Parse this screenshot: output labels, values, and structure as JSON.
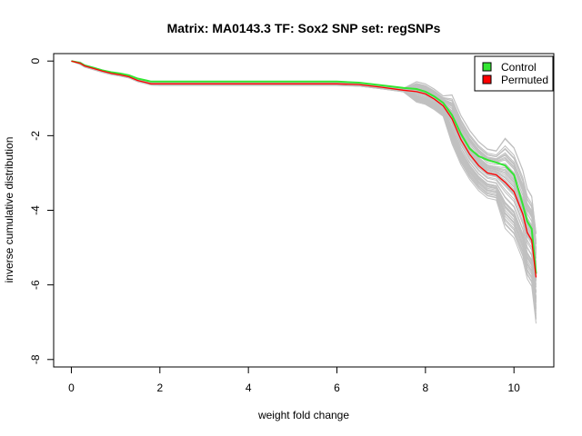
{
  "chart_data": {
    "type": "line",
    "title": "Matrix: MA0143.3 TF: Sox2 SNP set: regSNPs",
    "xlabel": "weight fold change",
    "ylabel": "inverse cumulative distribution",
    "xlim": [
      -0.4,
      10.9
    ],
    "ylim": [
      -8.2,
      0.2
    ],
    "x_ticks": [
      0,
      2,
      4,
      6,
      8,
      10
    ],
    "y_ticks": [
      0,
      -2,
      -4,
      -6,
      -8
    ],
    "grid": false,
    "legend_position": "top-right",
    "colors": {
      "control": "#33e633",
      "permuted": "#ff0000",
      "permutation_runs": "#c0c0c0"
    },
    "series": [
      {
        "name": "Control",
        "color": "#33e633",
        "x": [
          0,
          0.2,
          0.3,
          0.5,
          0.7,
          0.9,
          1.1,
          1.3,
          1.5,
          1.7,
          1.8,
          2.0,
          3.0,
          4.0,
          5.0,
          6.0,
          6.5,
          7.0,
          7.5,
          7.8,
          8.0,
          8.2,
          8.4,
          8.6,
          8.8,
          9.0,
          9.2,
          9.4,
          9.6,
          9.8,
          10.0,
          10.2,
          10.3,
          10.4,
          10.5
        ],
        "y": [
          0,
          -0.05,
          -0.12,
          -0.18,
          -0.25,
          -0.3,
          -0.33,
          -0.38,
          -0.47,
          -0.52,
          -0.55,
          -0.55,
          -0.55,
          -0.55,
          -0.55,
          -0.55,
          -0.58,
          -0.65,
          -0.72,
          -0.75,
          -0.82,
          -0.95,
          -1.12,
          -1.45,
          -1.95,
          -2.35,
          -2.55,
          -2.65,
          -2.72,
          -2.8,
          -3.05,
          -3.85,
          -4.3,
          -4.5,
          -5.7
        ]
      },
      {
        "name": "Permuted",
        "color": "#ff0000",
        "x": [
          0,
          0.2,
          0.3,
          0.5,
          0.7,
          0.9,
          1.1,
          1.3,
          1.5,
          1.7,
          1.8,
          2.0,
          3.0,
          4.0,
          5.0,
          6.0,
          6.5,
          7.0,
          7.5,
          7.8,
          8.0,
          8.2,
          8.4,
          8.6,
          8.8,
          9.0,
          9.2,
          9.4,
          9.6,
          9.8,
          10.0,
          10.2,
          10.3,
          10.4,
          10.5
        ],
        "y": [
          0,
          -0.06,
          -0.13,
          -0.2,
          -0.27,
          -0.33,
          -0.37,
          -0.42,
          -0.52,
          -0.58,
          -0.61,
          -0.61,
          -0.61,
          -0.61,
          -0.61,
          -0.61,
          -0.63,
          -0.7,
          -0.78,
          -0.82,
          -0.88,
          -1.02,
          -1.2,
          -1.55,
          -2.1,
          -2.5,
          -2.8,
          -3.0,
          -3.05,
          -3.25,
          -3.5,
          -4.1,
          -4.6,
          -4.8,
          -5.8
        ]
      }
    ],
    "legend": [
      {
        "label": "Control",
        "color": "#33e633"
      },
      {
        "label": "Permuted",
        "color": "#ff0000"
      }
    ]
  }
}
